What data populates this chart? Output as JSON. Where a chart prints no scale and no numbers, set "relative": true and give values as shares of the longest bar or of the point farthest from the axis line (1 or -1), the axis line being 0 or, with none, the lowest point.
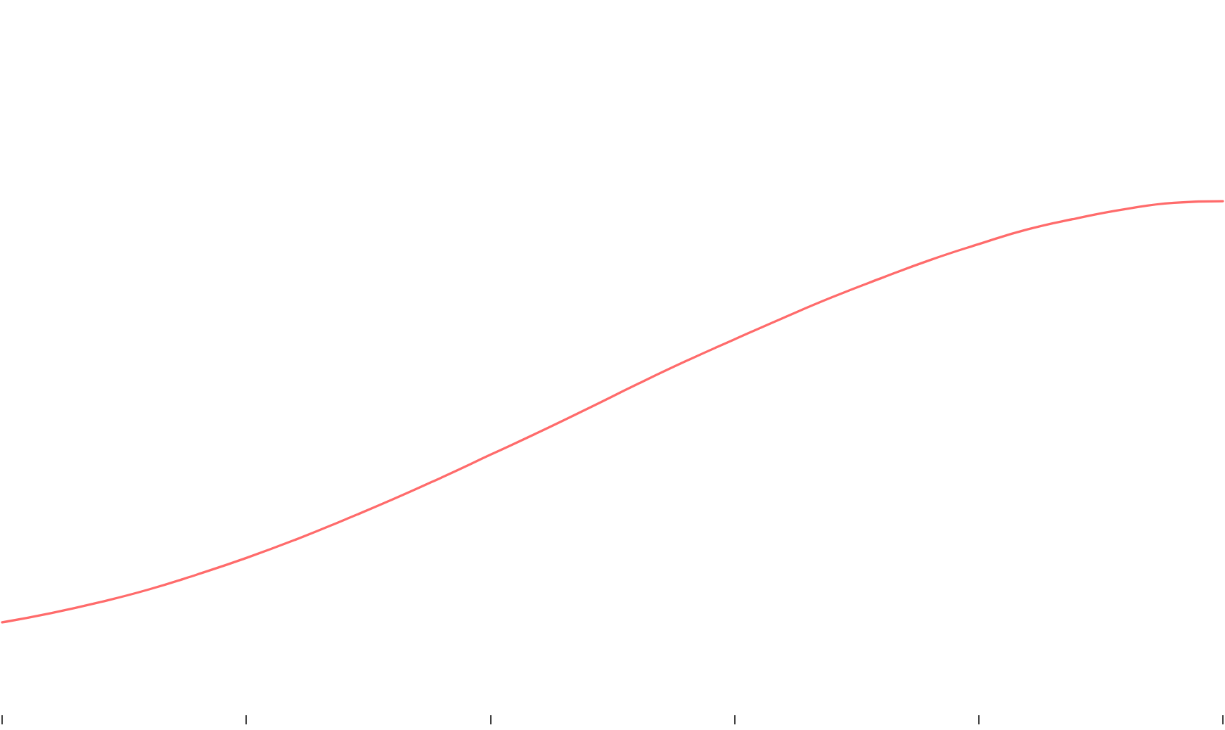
{
  "chart_data": {
    "type": "line",
    "relative": true,
    "categories": [
      null,
      null,
      null,
      null,
      null,
      null,
      null,
      null,
      null,
      null,
      null,
      null,
      null,
      null,
      null,
      null,
      null,
      null,
      null,
      null,
      null,
      null,
      null,
      null,
      null,
      null
    ],
    "values": [
      0,
      0.022,
      0.048,
      0.078,
      0.114,
      0.153,
      0.196,
      0.243,
      0.292,
      0.344,
      0.398,
      0.452,
      0.508,
      0.565,
      0.62,
      0.672,
      0.723,
      0.772,
      0.817,
      0.86,
      0.898,
      0.933,
      0.959,
      0.981,
      0.996,
      1
    ],
    "color": "#ff6b6b",
    "marker": "none"
  }
}
